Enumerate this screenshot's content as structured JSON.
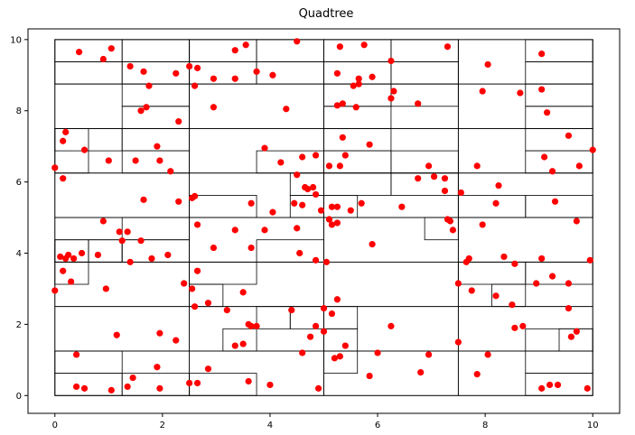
{
  "chart_data": {
    "type": "scatter",
    "title": "Quadtree",
    "xlabel": "",
    "ylabel": "",
    "xlim": [
      -0.5,
      10.5
    ],
    "ylim": [
      -0.5,
      10.3
    ],
    "xticks": [
      0,
      2,
      4,
      6,
      8,
      10
    ],
    "yticks": [
      0,
      2,
      4,
      6,
      8,
      10
    ],
    "tick_labels_x": [
      "0",
      "2",
      "4",
      "6",
      "8",
      "10"
    ],
    "tick_labels_y": [
      "0",
      "2",
      "4",
      "6",
      "8",
      "10"
    ],
    "grid": false,
    "point_color": "#ff0000",
    "line_color": "#000000",
    "points": [
      [
        0.45,
        9.65
      ],
      [
        0.9,
        9.45
      ],
      [
        1.05,
        9.75
      ],
      [
        1.4,
        9.25
      ],
      [
        1.65,
        9.1
      ],
      [
        1.75,
        8.7
      ],
      [
        2.25,
        9.05
      ],
      [
        2.5,
        9.25
      ],
      [
        2.6,
        8.7
      ],
      [
        2.65,
        9.2
      ],
      [
        2.95,
        8.9
      ],
      [
        3.35,
        9.7
      ],
      [
        3.35,
        8.9
      ],
      [
        3.55,
        9.85
      ],
      [
        3.75,
        9.1
      ],
      [
        4.05,
        9.0
      ],
      [
        4.5,
        9.95
      ],
      [
        5.3,
        9.8
      ],
      [
        5.25,
        9.05
      ],
      [
        5.65,
        8.9
      ],
      [
        5.75,
        9.85
      ],
      [
        5.55,
        8.7
      ],
      [
        5.65,
        8.75
      ],
      [
        5.9,
        8.95
      ],
      [
        6.25,
        9.4
      ],
      [
        7.3,
        9.8
      ],
      [
        8.05,
        9.3
      ],
      [
        7.95,
        8.55
      ],
      [
        8.65,
        8.5
      ],
      [
        9.05,
        9.6
      ],
      [
        9.05,
        8.6
      ],
      [
        1.6,
        8.0
      ],
      [
        1.7,
        8.1
      ],
      [
        2.3,
        7.7
      ],
      [
        2.95,
        8.1
      ],
      [
        4.3,
        8.05
      ],
      [
        5.25,
        8.15
      ],
      [
        5.35,
        8.2
      ],
      [
        5.6,
        8.1
      ],
      [
        6.3,
        8.55
      ],
      [
        6.25,
        8.35
      ],
      [
        6.75,
        8.2
      ],
      [
        9.15,
        7.95
      ],
      [
        0.15,
        7.15
      ],
      [
        0.2,
        7.4
      ],
      [
        0.55,
        6.9
      ],
      [
        1.0,
        6.6
      ],
      [
        1.5,
        6.6
      ],
      [
        1.9,
        7.0
      ],
      [
        1.95,
        6.6
      ],
      [
        2.15,
        6.3
      ],
      [
        3.9,
        6.95
      ],
      [
        4.2,
        6.55
      ],
      [
        4.5,
        6.2
      ],
      [
        4.6,
        6.7
      ],
      [
        4.85,
        6.75
      ],
      [
        5.1,
        6.45
      ],
      [
        5.3,
        6.45
      ],
      [
        5.4,
        6.75
      ],
      [
        5.35,
        7.25
      ],
      [
        5.85,
        7.05
      ],
      [
        6.95,
        6.45
      ],
      [
        7.05,
        6.15
      ],
      [
        6.75,
        6.1
      ],
      [
        7.25,
        6.1
      ],
      [
        7.85,
        6.45
      ],
      [
        9.1,
        6.7
      ],
      [
        9.25,
        6.3
      ],
      [
        9.55,
        7.3
      ],
      [
        9.75,
        6.45
      ],
      [
        10.0,
        6.9
      ],
      [
        0.0,
        6.4
      ],
      [
        0.15,
        6.1
      ],
      [
        1.65,
        5.5
      ],
      [
        2.3,
        5.45
      ],
      [
        2.55,
        5.55
      ],
      [
        2.6,
        5.6
      ],
      [
        3.65,
        5.4
      ],
      [
        4.05,
        5.15
      ],
      [
        4.45,
        5.4
      ],
      [
        4.65,
        5.85
      ],
      [
        4.7,
        5.8
      ],
      [
        4.8,
        5.85
      ],
      [
        4.85,
        5.65
      ],
      [
        4.6,
        5.35
      ],
      [
        4.95,
        5.2
      ],
      [
        5.15,
        5.3
      ],
      [
        5.25,
        5.3
      ],
      [
        5.5,
        5.2
      ],
      [
        5.7,
        5.4
      ],
      [
        5.1,
        4.95
      ],
      [
        5.15,
        4.8
      ],
      [
        6.45,
        5.3
      ],
      [
        7.25,
        5.75
      ],
      [
        7.55,
        5.7
      ],
      [
        7.3,
        4.95
      ],
      [
        7.35,
        4.9
      ],
      [
        7.4,
        4.65
      ],
      [
        7.95,
        4.8
      ],
      [
        8.2,
        5.4
      ],
      [
        8.25,
        5.9
      ],
      [
        9.3,
        5.45
      ],
      [
        9.7,
        4.9
      ],
      [
        0.9,
        4.9
      ],
      [
        1.2,
        4.6
      ],
      [
        1.25,
        4.35
      ],
      [
        1.35,
        4.6
      ],
      [
        1.6,
        4.35
      ],
      [
        2.65,
        4.8
      ],
      [
        3.35,
        4.65
      ],
      [
        3.65,
        4.15
      ],
      [
        3.9,
        4.65
      ],
      [
        4.5,
        4.7
      ],
      [
        5.25,
        4.85
      ],
      [
        5.9,
        4.25
      ],
      [
        1.8,
        3.85
      ],
      [
        2.1,
        3.95
      ],
      [
        2.95,
        4.15
      ],
      [
        0.1,
        3.9
      ],
      [
        0.2,
        3.85
      ],
      [
        0.25,
        3.95
      ],
      [
        0.35,
        3.85
      ],
      [
        0.5,
        4.0
      ],
      [
        0.8,
        3.95
      ],
      [
        1.4,
        3.75
      ],
      [
        0.15,
        3.5
      ],
      [
        0.3,
        3.2
      ],
      [
        0.0,
        2.95
      ],
      [
        0.95,
        3.0
      ],
      [
        2.4,
        3.15
      ],
      [
        2.55,
        3.0
      ],
      [
        2.65,
        3.5
      ],
      [
        2.85,
        2.6
      ],
      [
        3.5,
        2.9
      ],
      [
        4.55,
        4.0
      ],
      [
        4.85,
        3.8
      ],
      [
        5.05,
        3.75
      ],
      [
        7.5,
        3.15
      ],
      [
        7.65,
        3.75
      ],
      [
        7.7,
        3.85
      ],
      [
        7.75,
        2.95
      ],
      [
        8.35,
        3.9
      ],
      [
        8.55,
        3.7
      ],
      [
        8.2,
        2.8
      ],
      [
        8.5,
        2.55
      ],
      [
        8.95,
        3.15
      ],
      [
        9.05,
        3.85
      ],
      [
        9.25,
        3.35
      ],
      [
        9.55,
        3.15
      ],
      [
        9.95,
        3.8
      ],
      [
        9.55,
        2.45
      ],
      [
        1.15,
        1.7
      ],
      [
        1.95,
        1.75
      ],
      [
        2.25,
        1.55
      ],
      [
        2.6,
        2.5
      ],
      [
        3.2,
        2.4
      ],
      [
        3.35,
        1.4
      ],
      [
        3.5,
        1.45
      ],
      [
        3.6,
        2.0
      ],
      [
        3.65,
        1.95
      ],
      [
        3.75,
        1.95
      ],
      [
        4.4,
        2.4
      ],
      [
        4.75,
        1.65
      ],
      [
        4.85,
        1.95
      ],
      [
        5.0,
        2.45
      ],
      [
        5.0,
        1.8
      ],
      [
        5.15,
        2.3
      ],
      [
        5.25,
        2.7
      ],
      [
        5.2,
        1.05
      ],
      [
        5.3,
        1.1
      ],
      [
        5.4,
        1.4
      ],
      [
        6.25,
        1.95
      ],
      [
        6.95,
        1.15
      ],
      [
        7.5,
        1.5
      ],
      [
        8.05,
        1.15
      ],
      [
        8.55,
        1.9
      ],
      [
        8.7,
        1.95
      ],
      [
        9.6,
        1.65
      ],
      [
        9.7,
        1.8
      ],
      [
        0.4,
        1.15
      ],
      [
        0.4,
        0.25
      ],
      [
        0.55,
        0.2
      ],
      [
        1.05,
        0.15
      ],
      [
        1.35,
        0.25
      ],
      [
        1.45,
        0.5
      ],
      [
        1.9,
        0.8
      ],
      [
        1.95,
        0.2
      ],
      [
        2.5,
        0.35
      ],
      [
        2.65,
        0.35
      ],
      [
        2.85,
        0.75
      ],
      [
        3.6,
        0.4
      ],
      [
        4.0,
        0.3
      ],
      [
        4.6,
        1.2
      ],
      [
        4.9,
        0.2
      ],
      [
        5.85,
        0.55
      ],
      [
        6.0,
        1.2
      ],
      [
        6.8,
        0.65
      ],
      [
        7.85,
        0.6
      ],
      [
        9.05,
        0.2
      ],
      [
        9.2,
        0.3
      ],
      [
        9.35,
        0.3
      ],
      [
        9.9,
        0.2
      ]
    ],
    "cells": [
      [
        0,
        0,
        10,
        10
      ],
      [
        0,
        8.75,
        2.5,
        10
      ],
      [
        2.5,
        8.75,
        5,
        10
      ],
      [
        5,
        8.75,
        7.5,
        10
      ],
      [
        7.5,
        8.75,
        10,
        10
      ],
      [
        0,
        7.5,
        2.5,
        8.75
      ],
      [
        2.5,
        7.5,
        5,
        8.75
      ],
      [
        5,
        7.5,
        7.5,
        8.75
      ],
      [
        7.5,
        7.5,
        10,
        8.75
      ],
      [
        0,
        6.25,
        2.5,
        7.5
      ],
      [
        2.5,
        6.25,
        5,
        7.5
      ],
      [
        5,
        6.25,
        7.5,
        7.5
      ],
      [
        7.5,
        6.25,
        10,
        7.5
      ],
      [
        0,
        5,
        2.5,
        6.25
      ],
      [
        2.5,
        5,
        5,
        6.25
      ],
      [
        5,
        5,
        7.5,
        6.25
      ],
      [
        7.5,
        5,
        10,
        6.25
      ],
      [
        0,
        3.75,
        2.5,
        5
      ],
      [
        2.5,
        3.75,
        5,
        5
      ],
      [
        5,
        3.75,
        7.5,
        5
      ],
      [
        7.5,
        3.75,
        10,
        5
      ],
      [
        0,
        2.5,
        2.5,
        3.75
      ],
      [
        2.5,
        2.5,
        5,
        3.75
      ],
      [
        5,
        2.5,
        7.5,
        3.75
      ],
      [
        7.5,
        2.5,
        10,
        3.75
      ],
      [
        0,
        1.25,
        2.5,
        2.5
      ],
      [
        2.5,
        1.25,
        5,
        2.5
      ],
      [
        5,
        1.25,
        7.5,
        2.5
      ],
      [
        7.5,
        1.25,
        10,
        2.5
      ],
      [
        0,
        0,
        2.5,
        1.25
      ],
      [
        2.5,
        0,
        5,
        1.25
      ],
      [
        5,
        0,
        7.5,
        1.25
      ],
      [
        7.5,
        0,
        10,
        1.25
      ],
      [
        0,
        9.375,
        1.25,
        10
      ],
      [
        1.25,
        9.375,
        2.5,
        10
      ],
      [
        0,
        8.75,
        1.25,
        9.375
      ],
      [
        1.25,
        8.75,
        2.5,
        9.375
      ],
      [
        2.5,
        9.375,
        3.75,
        10
      ],
      [
        3.75,
        9.375,
        5,
        10
      ],
      [
        2.5,
        8.75,
        3.75,
        9.375
      ],
      [
        3.75,
        8.75,
        5,
        9.375
      ],
      [
        5,
        9.375,
        6.25,
        10
      ],
      [
        6.25,
        9.375,
        7.5,
        10
      ],
      [
        5,
        8.75,
        6.25,
        9.375
      ],
      [
        6.25,
        8.75,
        7.5,
        9.375
      ],
      [
        8.75,
        9.375,
        10,
        10
      ],
      [
        8.75,
        8.75,
        10,
        9.375
      ],
      [
        1.25,
        7.5,
        2.5,
        8.125
      ],
      [
        1.25,
        8.125,
        2.5,
        8.75
      ],
      [
        5,
        7.5,
        6.25,
        8.125
      ],
      [
        5,
        8.125,
        6.25,
        8.75
      ],
      [
        6.25,
        8.125,
        7.5,
        8.75
      ],
      [
        8.75,
        7.5,
        10,
        8.125
      ],
      [
        8.75,
        8.125,
        10,
        8.75
      ],
      [
        0,
        6.25,
        0.625,
        7.5
      ],
      [
        0,
        6.875,
        1.25,
        7.5
      ],
      [
        1.25,
        6.25,
        2.5,
        6.875
      ],
      [
        1.25,
        6.875,
        2.5,
        7.5
      ],
      [
        3.75,
        6.25,
        5,
        6.875
      ],
      [
        5,
        6.25,
        6.25,
        6.875
      ],
      [
        5,
        6.875,
        6.25,
        7.5
      ],
      [
        6.25,
        6.25,
        7.5,
        6.875
      ],
      [
        6.25,
        5.625,
        7.5,
        6.25
      ],
      [
        8.75,
        6.25,
        10,
        6.875
      ],
      [
        8.75,
        6.875,
        10,
        7.5
      ],
      [
        2.5,
        5,
        3.75,
        5.625
      ],
      [
        4.375,
        5,
        5,
        5.625
      ],
      [
        4.375,
        5.625,
        5,
        6.25
      ],
      [
        5,
        5,
        5.625,
        5.625
      ],
      [
        5,
        5.625,
        6.25,
        6.25
      ],
      [
        6.875,
        4.375,
        7.5,
        5
      ],
      [
        7.5,
        5,
        8.75,
        5.625
      ],
      [
        8.75,
        5,
        10,
        5.625
      ],
      [
        0,
        3.75,
        1.25,
        4.375
      ],
      [
        1.25,
        4.375,
        2.5,
        5
      ],
      [
        1.25,
        3.75,
        2.5,
        4.375
      ],
      [
        3.75,
        3.75,
        5,
        4.375
      ],
      [
        0,
        3.125,
        0.625,
        3.75
      ],
      [
        0,
        3.75,
        0.625,
        4.375
      ],
      [
        0.625,
        3.75,
        1.25,
        4.375
      ],
      [
        2.5,
        3.125,
        3.75,
        3.75
      ],
      [
        2.5,
        2.5,
        3.125,
        3.125
      ],
      [
        7.5,
        3.125,
        8.75,
        3.75
      ],
      [
        8.75,
        3.125,
        10,
        3.75
      ],
      [
        8.125,
        2.5,
        8.75,
        3.125
      ],
      [
        3.125,
        1.25,
        3.75,
        1.875
      ],
      [
        3.75,
        1.875,
        4.375,
        2.5
      ],
      [
        4.375,
        1.875,
        5,
        2.5
      ],
      [
        5,
        1.875,
        5.625,
        2.5
      ],
      [
        5,
        1.25,
        5.625,
        1.875
      ],
      [
        8.75,
        1.25,
        10,
        1.875
      ],
      [
        9.375,
        1.25,
        10,
        1.875
      ],
      [
        0,
        0,
        1.25,
        0.625
      ],
      [
        0,
        0.625,
        1.25,
        1.25
      ],
      [
        1.25,
        0,
        2.5,
        0.625
      ],
      [
        2.5,
        0,
        3.75,
        0.625
      ],
      [
        5,
        0.625,
        5.625,
        1.25
      ],
      [
        8.75,
        0,
        10,
        0.625
      ],
      [
        8.75,
        0.625,
        10,
        1.25
      ]
    ]
  }
}
